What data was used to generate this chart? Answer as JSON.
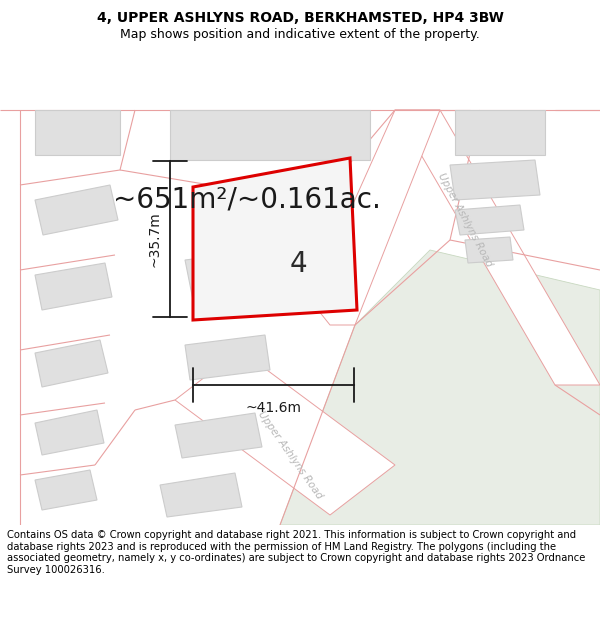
{
  "title_line1": "4, UPPER ASHLYNS ROAD, BERKHAMSTED, HP4 3BW",
  "title_line2": "Map shows position and indicative extent of the property.",
  "footer_text": "Contains OS data © Crown copyright and database right 2021. This information is subject to Crown copyright and database rights 2023 and is reproduced with the permission of HM Land Registry. The polygons (including the associated geometry, namely x, y co-ordinates) are subject to Crown copyright and database rights 2023 Ordnance Survey 100026316.",
  "area_label": "~651m²/~0.161ac.",
  "width_label": "~41.6m",
  "height_label": "~35.7m",
  "plot_number": "4",
  "map_bg": "#ffffff",
  "road_pink": "#f2c8c8",
  "road_stroke": "#e8a0a0",
  "building_fill": "#e0e0e0",
  "building_stroke": "#cccccc",
  "highlight_stroke": "#dd0000",
  "highlight_fill": "#f5f5f5",
  "green_fill": "#e8ede5",
  "green_stroke": "#c8d8c0",
  "dim_line_color": "#1a1a1a",
  "road_text_color": "#b8b8b8",
  "title_fontsize": 10,
  "subtitle_fontsize": 9,
  "footer_fontsize": 7.2,
  "area_fontsize": 20,
  "dim_fontsize": 10,
  "plot_num_fontsize": 20,
  "road_lw": 0.8,
  "highlight_lw": 2.2
}
